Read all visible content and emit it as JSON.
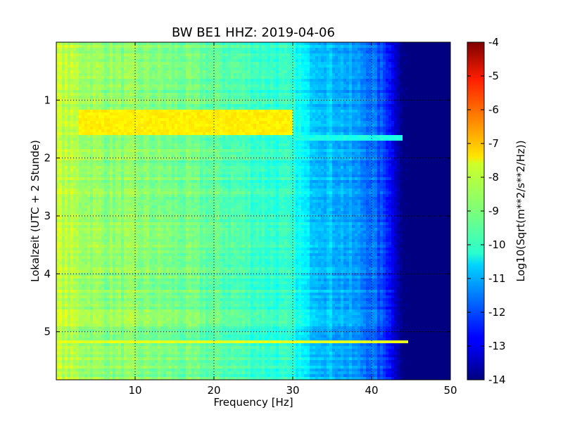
{
  "chart_data": {
    "type": "heatmap",
    "title": "BW BE1 HHZ: 2019-04-06",
    "xlabel": "Frequency [Hz]",
    "ylabel": "Lokalzeit (UTC + 2 Stunde)",
    "xlim": [
      0,
      50
    ],
    "ylim": [
      0,
      5.83
    ],
    "y_inverted": true,
    "x_ticks": [
      "10",
      "20",
      "30",
      "40",
      "50"
    ],
    "x_tick_values": [
      10,
      20,
      30,
      40,
      50
    ],
    "y_ticks": [
      "1",
      "2",
      "3",
      "4",
      "5"
    ],
    "y_tick_values": [
      1,
      2,
      3,
      4,
      5
    ],
    "grid": true,
    "colormap": "jet",
    "colorbar": {
      "label": "Log10(Sqrt(m**2/s**2/Hz))",
      "range": [
        -14,
        -4
      ],
      "ticks": [
        "-4",
        "-5",
        "-6",
        "-7",
        "-8",
        "-9",
        "-10",
        "-11",
        "-12",
        "-13",
        "-14"
      ],
      "tick_values": [
        -4,
        -5,
        -6,
        -7,
        -8,
        -9,
        -10,
        -11,
        -12,
        -13,
        -14
      ]
    },
    "spectral_profile": {
      "frequency_hz": [
        0,
        3,
        6,
        10,
        15,
        20,
        25,
        30,
        32,
        36,
        40,
        42,
        43,
        44,
        50
      ],
      "log10_amplitude": [
        -8.3,
        -8.6,
        -8.8,
        -8.9,
        -9.1,
        -9.3,
        -9.6,
        -9.9,
        -10.6,
        -11.0,
        -11.6,
        -12.3,
        -13.2,
        -14.0,
        -14.0
      ]
    },
    "events": [
      {
        "time_start": 1.15,
        "time_end": 1.6,
        "freq_start": 3,
        "freq_end": 30,
        "level": -7.6
      },
      {
        "time_start": 5.15,
        "time_end": 5.22,
        "freq_start": 0,
        "freq_end": 45,
        "level": -8.0
      },
      {
        "time_start": 1.62,
        "time_end": 1.7,
        "freq_start": 28,
        "freq_end": 44,
        "level": -10.0
      }
    ]
  }
}
